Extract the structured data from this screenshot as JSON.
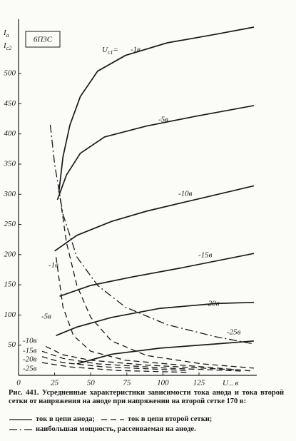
{
  "chart_data": {
    "type": "line",
    "tube_label": "6П3С",
    "y_label_1": {
      "symbol": "I",
      "subscript": "a"
    },
    "y_label_2": {
      "symbol": "I",
      "subscript": "c2"
    },
    "x_label": {
      "symbol": "U",
      "subscript": "a",
      "unit": ", в"
    },
    "param_label": {
      "symbol": "U",
      "subscript": "c1",
      "sign": "="
    },
    "xlim": [
      0,
      165
    ],
    "ylim": [
      0,
      590
    ],
    "xticks": [
      0,
      25,
      50,
      75,
      100,
      125
    ],
    "yticks": [
      50,
      100,
      150,
      200,
      250,
      300,
      350,
      400,
      450,
      500
    ],
    "grid": false,
    "series": [
      {
        "name": "-1в",
        "style": "solid",
        "color": "#1a1a1a",
        "x": [
          27.9,
          30.8,
          35.6,
          42.8,
          54.8,
          74,
          103,
          136.5,
          163
        ],
        "values": [
          303,
          362,
          415,
          462,
          504,
          530,
          551,
          565,
          577
        ]
      },
      {
        "name": "-5в",
        "style": "solid",
        "color": "#1a1a1a",
        "x": [
          26.9,
          33.2,
          42.8,
          59.6,
          88.5,
          122,
          163
        ],
        "values": [
          291,
          332,
          368,
          395,
          413,
          429,
          447
        ]
      },
      {
        "name": "-10в",
        "style": "solid",
        "color": "#1a1a1a",
        "x": [
          25,
          40.4,
          64.4,
          88.5,
          122,
          163
        ],
        "values": [
          206,
          232,
          255,
          272,
          291,
          314
        ]
      },
      {
        "name": "-15в",
        "style": "solid",
        "color": "#1a1a1a",
        "x": [
          28.4,
          50,
          78.8,
          112.5,
          163
        ],
        "values": [
          131,
          149,
          163,
          178,
          202
        ]
      },
      {
        "name": "-20в",
        "style": "solid",
        "color": "#1a1a1a",
        "x": [
          26,
          40.4,
          64.4,
          98,
          136.5,
          163
        ],
        "values": [
          66,
          80,
          96,
          111,
          119,
          121
        ]
      },
      {
        "name": "-25в",
        "style": "solid",
        "color": "#1a1a1a",
        "x": [
          40.4,
          64.4,
          98,
          136.5,
          163
        ],
        "values": [
          19,
          35,
          45,
          52,
          57
        ]
      },
      {
        "name": "-1в",
        "style": "dashed",
        "color": "#1a1a1a",
        "x": [
          27.9,
          33.2,
          40.4,
          50,
          64.4,
          88.5,
          127,
          163
        ],
        "values": [
          309,
          220,
          149,
          96,
          57,
          33,
          19,
          12
        ]
      },
      {
        "name": "-5в",
        "style": "dashed",
        "color": "#1a1a1a",
        "x": [
          26,
          30.8,
          38,
          50,
          74,
          112.5,
          163
        ],
        "values": [
          196,
          113,
          66,
          40,
          25,
          17,
          7
        ]
      },
      {
        "name": "-10в",
        "style": "dashed",
        "color": "#1a1a1a",
        "x": [
          18.8,
          30.8,
          50,
          88.5,
          151
        ],
        "values": [
          48,
          34,
          25,
          17,
          9
        ]
      },
      {
        "name": "-15в",
        "style": "dashed",
        "color": "#1a1a1a",
        "x": [
          16.3,
          30.8,
          54.8,
          103,
          156
        ],
        "values": [
          40,
          28,
          19,
          12,
          7
        ]
      },
      {
        "name": "-20в",
        "style": "dashed",
        "color": "#1a1a1a",
        "x": [
          16.3,
          30.8,
          59.6,
          117
        ],
        "values": [
          31,
          21,
          14,
          8
        ]
      },
      {
        "name": "-25в",
        "style": "dashed",
        "color": "#1a1a1a",
        "x": [
          16.3,
          35.6,
          69,
          117
        ],
        "values": [
          21,
          14,
          8,
          5
        ]
      },
      {
        "style": "dashdot",
        "color": "#1a1a1a",
        "x": [
          22,
          25,
          30.8,
          40.4,
          54.8,
          74,
          103,
          136.5,
          163
        ],
        "values": [
          415,
          350,
          267,
          196,
          149,
          113,
          84,
          64,
          52
        ]
      }
    ],
    "caption": "Рис. 441. Усредненные характеристики зависимости тока анода и тока второй сетки от напряжения на аноде при напряжении на второй сетке 170 в:",
    "legend": [
      {
        "style": "solid",
        "name": "ток в цепи анода;"
      },
      {
        "style": "dashed",
        "name": "ток в цепи второй сетки;"
      },
      {
        "style": "dashdot",
        "name": "наибольшая мощность, рассеиваемая на аноде."
      }
    ]
  }
}
